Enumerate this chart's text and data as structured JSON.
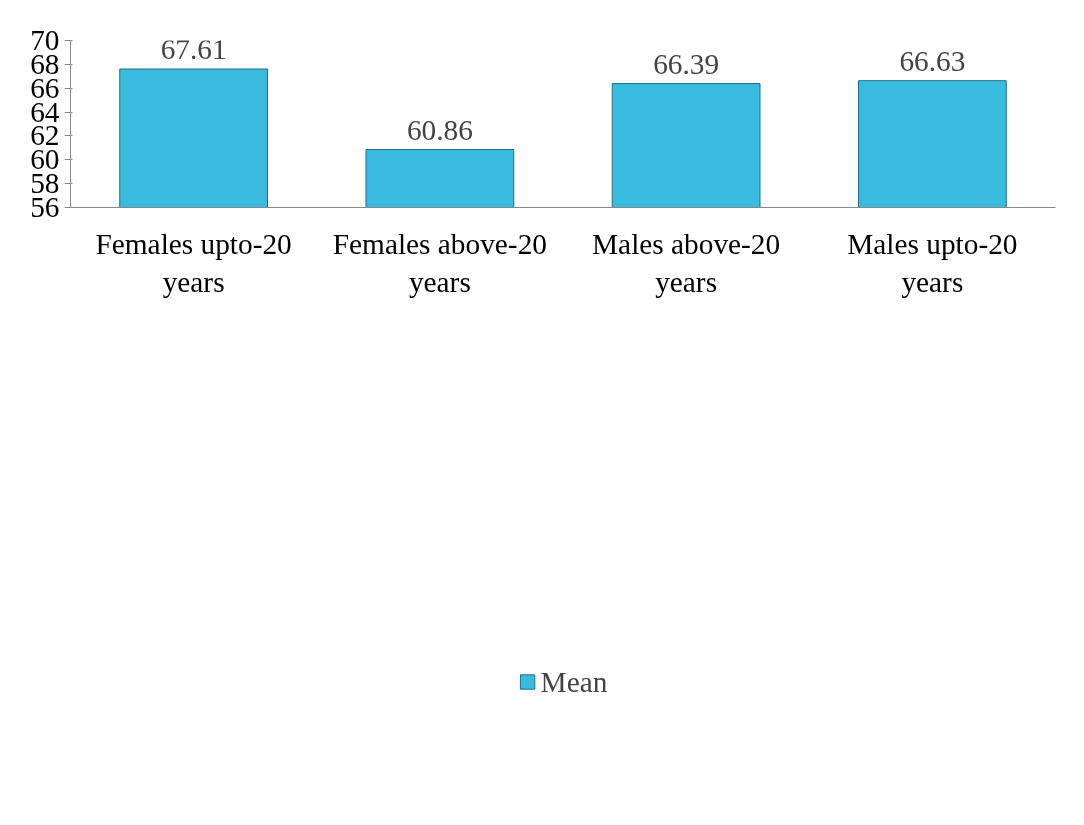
{
  "chart_data": {
    "type": "bar",
    "categories": [
      "Females upto-20 years",
      "Females above-20 years",
      "Males above-20 years",
      "Males upto-20 years"
    ],
    "series": [
      {
        "name": "Mean",
        "color": "#38bbdf",
        "values": [
          67.61,
          60.86,
          66.39,
          66.63
        ]
      }
    ],
    "ylim": [
      56,
      70
    ],
    "yticks": [
      56,
      58,
      60,
      62,
      64,
      66,
      68,
      70
    ],
    "data_labels": true,
    "grid": false,
    "legend": "bottom"
  }
}
